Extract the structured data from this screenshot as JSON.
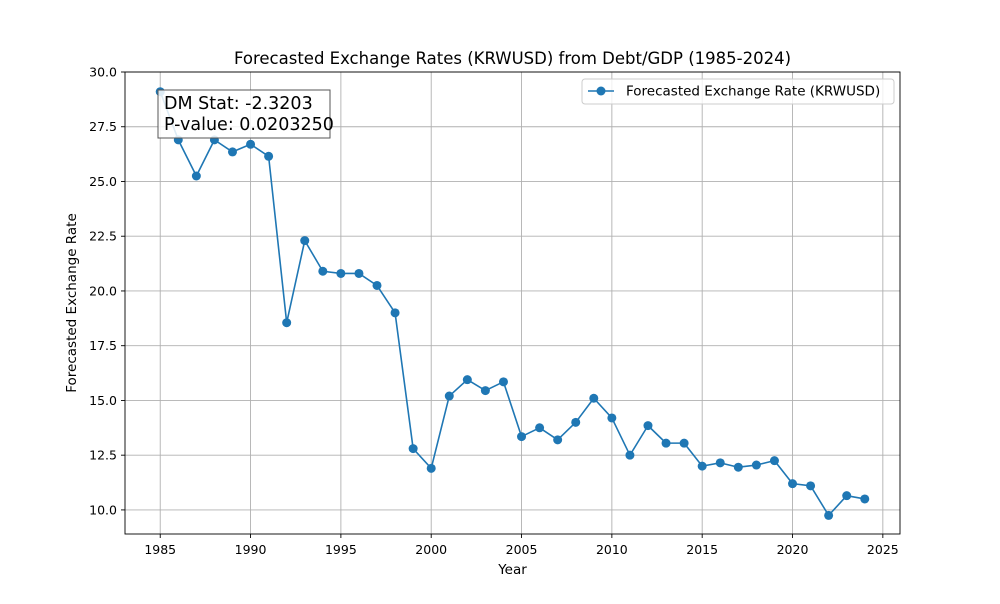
{
  "chart_data": {
    "type": "line",
    "title": "Forecasted Exchange Rates (KRWUSD) from Debt/GDP (1985-2024)",
    "xlabel": "Year",
    "ylabel": "Forecasted Exchange Rate",
    "xlim": [
      1983.05,
      2025.95
    ],
    "ylim": [
      8.9,
      30.0
    ],
    "xticks": [
      1985,
      1990,
      1995,
      2000,
      2005,
      2010,
      2015,
      2020,
      2025
    ],
    "yticks": [
      10.0,
      12.5,
      15.0,
      17.5,
      20.0,
      22.5,
      25.0,
      27.5,
      30.0
    ],
    "ytick_labels": [
      "10.0",
      "12.5",
      "15.0",
      "17.5",
      "20.0",
      "22.5",
      "25.0",
      "27.5",
      "30.0"
    ],
    "grid": true,
    "legend_position": "top-right",
    "annotation": {
      "line1": "DM Stat: -2.3203",
      "line2": "P-value: 0.0203250",
      "position": "top-left"
    },
    "series": [
      {
        "name": "Forecasted Exchange Rate (KRWUSD)",
        "color": "#1f77b4",
        "x": [
          1985,
          1986,
          1987,
          1988,
          1989,
          1990,
          1991,
          1992,
          1993,
          1994,
          1995,
          1996,
          1997,
          1998,
          1999,
          2000,
          2001,
          2002,
          2003,
          2004,
          2005,
          2006,
          2007,
          2008,
          2009,
          2010,
          2011,
          2012,
          2013,
          2014,
          2015,
          2016,
          2017,
          2018,
          2019,
          2020,
          2021,
          2022,
          2023,
          2024
        ],
        "y": [
          29.1,
          26.9,
          25.25,
          26.9,
          26.35,
          26.7,
          26.15,
          18.55,
          22.3,
          20.9,
          20.8,
          20.8,
          20.25,
          19.0,
          12.8,
          11.9,
          15.2,
          15.95,
          15.45,
          15.85,
          13.35,
          13.75,
          13.2,
          14.0,
          15.1,
          14.2,
          12.5,
          13.85,
          13.05,
          13.05,
          12.0,
          12.15,
          11.95,
          12.05,
          12.25,
          11.2,
          11.1,
          9.75,
          10.65,
          10.5
        ]
      }
    ]
  }
}
